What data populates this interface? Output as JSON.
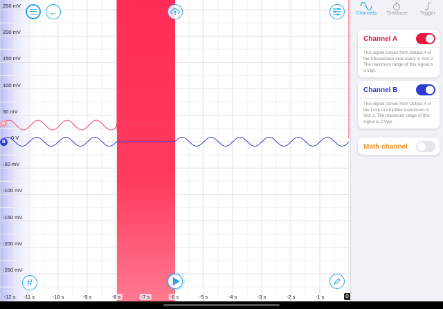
{
  "plot": {
    "y_labels": [
      "250 mV",
      "200 mV",
      "150 mV",
      "100 mV",
      "50 mV",
      "0 V",
      "-50 mV",
      "-100 mV",
      "-150 mV",
      "-200 mV",
      "-250 mV"
    ],
    "x_labels": [
      "-12 s",
      "-11 s",
      "-10 s",
      "-9 s",
      "-8 s",
      "-7 s",
      "-6 s",
      "-5 s",
      "-4 s",
      "-3 s",
      "-2 s",
      "-1 s"
    ],
    "zero_label": "0",
    "marker_a": "A",
    "marker_b": "B",
    "selection_range_s": [
      -8,
      -6
    ],
    "channel_a_color": "#f0436a",
    "channel_b_color": "#3a3fd0",
    "selection_color": "#ff2d55"
  },
  "side": {
    "tabs": [
      {
        "label": "Channels",
        "icon": "sine-icon"
      },
      {
        "label": "Timebase",
        "icon": "stopwatch-icon"
      },
      {
        "label": "Trigger",
        "icon": "trigger-icon"
      }
    ],
    "channel_a": {
      "title": "Channel A",
      "on": true,
      "desc": "This signal comes from Output A of the Phasemeter instrument in Slot 2. The maximum range of this signal is 2 Vpp.",
      "color": "#e8173f"
    },
    "channel_b": {
      "title": "Channel B",
      "on": true,
      "desc": "This signal comes from Output A of the Lock-In Amplifier instrument in Slot 3. The maximum range of this signal is 2 Vpp.",
      "color": "#2b3bd6"
    },
    "math": {
      "title": "Math channel",
      "on": false,
      "color": "#f0932b"
    }
  }
}
